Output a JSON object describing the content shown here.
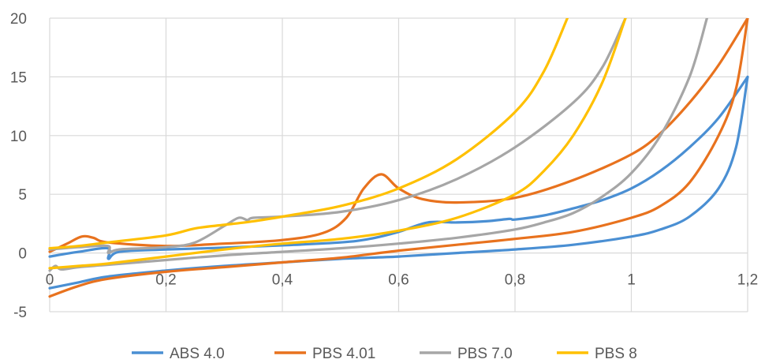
{
  "chart_data": {
    "type": "line",
    "title": "",
    "xlabel": "",
    "ylabel": "",
    "xlim": [
      0,
      1.2
    ],
    "ylim": [
      -5,
      20
    ],
    "grid": true,
    "legend_position": "bottom",
    "x_ticks": [
      {
        "value": 0,
        "label": "0"
      },
      {
        "value": 0.2,
        "label": "0,2"
      },
      {
        "value": 0.4,
        "label": "0,4"
      },
      {
        "value": 0.6,
        "label": "0,6"
      },
      {
        "value": 0.8,
        "label": "0,8"
      },
      {
        "value": 1,
        "label": "1"
      },
      {
        "value": 1.2,
        "label": "1,2"
      }
    ],
    "y_ticks": [
      {
        "value": -5,
        "label": "-5"
      },
      {
        "value": 0,
        "label": "0"
      },
      {
        "value": 5,
        "label": "5"
      },
      {
        "value": 10,
        "label": "10"
      },
      {
        "value": 15,
        "label": "15"
      },
      {
        "value": 20,
        "label": "20"
      }
    ],
    "series": [
      {
        "name": "ABS 4.0",
        "color": "#4A8FD3",
        "curves": [
          [
            [
              0,
              -3.0
            ],
            [
              0.05,
              -2.5
            ],
            [
              0.1,
              -2.0
            ],
            [
              0.2,
              -1.5
            ],
            [
              0.3,
              -1.1
            ],
            [
              0.4,
              -0.8
            ],
            [
              0.5,
              -0.5
            ],
            [
              0.6,
              -0.3
            ],
            [
              0.7,
              0.0
            ],
            [
              0.8,
              0.3
            ],
            [
              0.9,
              0.7
            ],
            [
              1.0,
              1.4
            ],
            [
              1.05,
              2.0
            ],
            [
              1.1,
              3.1
            ],
            [
              1.15,
              5.5
            ],
            [
              1.18,
              9.0
            ],
            [
              1.2,
              15.0
            ]
          ],
          [
            [
              0,
              -0.3
            ],
            [
              0.05,
              0.1
            ],
            [
              0.1,
              0.4
            ],
            [
              0.101,
              -0.5
            ],
            [
              0.12,
              0.1
            ],
            [
              0.2,
              0.3
            ],
            [
              0.3,
              0.45
            ],
            [
              0.4,
              0.65
            ],
            [
              0.5,
              0.9
            ],
            [
              0.55,
              1.2
            ],
            [
              0.6,
              1.8
            ],
            [
              0.65,
              2.6
            ],
            [
              0.7,
              2.6
            ],
            [
              0.75,
              2.7
            ],
            [
              0.79,
              2.9
            ],
            [
              0.8,
              2.85
            ],
            [
              0.85,
              3.2
            ],
            [
              0.9,
              3.8
            ],
            [
              0.95,
              4.5
            ],
            [
              1.0,
              5.5
            ],
            [
              1.05,
              7.0
            ],
            [
              1.1,
              9.0
            ],
            [
              1.15,
              11.5
            ],
            [
              1.2,
              15.0
            ]
          ]
        ]
      },
      {
        "name": "PBS 4.01",
        "color": "#E8721E",
        "curves": [
          [
            [
              0,
              -3.7
            ],
            [
              0.05,
              -2.8
            ],
            [
              0.1,
              -2.2
            ],
            [
              0.2,
              -1.6
            ],
            [
              0.3,
              -1.2
            ],
            [
              0.4,
              -0.8
            ],
            [
              0.5,
              -0.4
            ],
            [
              0.6,
              0.2
            ],
            [
              0.7,
              0.7
            ],
            [
              0.8,
              1.2
            ],
            [
              0.9,
              1.8
            ],
            [
              1.0,
              3.0
            ],
            [
              1.05,
              4.0
            ],
            [
              1.1,
              6.0
            ],
            [
              1.15,
              10.0
            ],
            [
              1.18,
              14.0
            ],
            [
              1.2,
              20.0
            ]
          ],
          [
            [
              0,
              0.1
            ],
            [
              0.03,
              0.8
            ],
            [
              0.055,
              1.4
            ],
            [
              0.075,
              1.3
            ],
            [
              0.1,
              0.9
            ],
            [
              0.2,
              0.6
            ],
            [
              0.3,
              0.8
            ],
            [
              0.4,
              1.1
            ],
            [
              0.47,
              1.7
            ],
            [
              0.51,
              3.0
            ],
            [
              0.54,
              5.5
            ],
            [
              0.57,
              6.7
            ],
            [
              0.6,
              5.5
            ],
            [
              0.64,
              4.6
            ],
            [
              0.7,
              4.3
            ],
            [
              0.8,
              4.7
            ],
            [
              0.9,
              6.2
            ],
            [
              1.0,
              8.4
            ],
            [
              1.05,
              10.2
            ],
            [
              1.1,
              12.8
            ],
            [
              1.15,
              16.0
            ],
            [
              1.2,
              20.0
            ]
          ]
        ]
      },
      {
        "name": "PBS 7.0",
        "color": "#A6A6A6",
        "curves": [
          [
            [
              0,
              -1.5
            ],
            [
              0.01,
              -1.1
            ],
            [
              0.02,
              -1.4
            ],
            [
              0.05,
              -1.2
            ],
            [
              0.1,
              -1.0
            ],
            [
              0.2,
              -0.6
            ],
            [
              0.3,
              -0.2
            ],
            [
              0.4,
              0.1
            ],
            [
              0.5,
              0.4
            ],
            [
              0.6,
              0.8
            ],
            [
              0.7,
              1.3
            ],
            [
              0.8,
              2.0
            ],
            [
              0.85,
              2.6
            ],
            [
              0.9,
              3.4
            ],
            [
              0.95,
              4.8
            ],
            [
              1.0,
              6.8
            ],
            [
              1.05,
              10.0
            ],
            [
              1.1,
              15.0
            ],
            [
              1.13,
              20.0
            ]
          ],
          [
            [
              0,
              0.3
            ],
            [
              0.05,
              0.5
            ],
            [
              0.1,
              0.6
            ],
            [
              0.101,
              0.0
            ],
            [
              0.12,
              0.3
            ],
            [
              0.2,
              0.5
            ],
            [
              0.25,
              0.9
            ],
            [
              0.3,
              2.3
            ],
            [
              0.325,
              3.0
            ],
            [
              0.34,
              2.8
            ],
            [
              0.35,
              3.0
            ],
            [
              0.4,
              3.1
            ],
            [
              0.5,
              3.5
            ],
            [
              0.6,
              4.5
            ],
            [
              0.7,
              6.3
            ],
            [
              0.8,
              9.0
            ],
            [
              0.9,
              12.8
            ],
            [
              0.95,
              15.8
            ],
            [
              0.99,
              20.0
            ]
          ]
        ]
      },
      {
        "name": "PBS 8",
        "color": "#FFC000",
        "curves": [
          [
            [
              0,
              -1.3
            ],
            [
              0.05,
              -1.1
            ],
            [
              0.1,
              -0.9
            ],
            [
              0.2,
              -0.3
            ],
            [
              0.3,
              0.3
            ],
            [
              0.4,
              0.8
            ],
            [
              0.5,
              1.2
            ],
            [
              0.6,
              1.9
            ],
            [
              0.7,
              3.0
            ],
            [
              0.8,
              5.0
            ],
            [
              0.85,
              7.0
            ],
            [
              0.9,
              10.0
            ],
            [
              0.95,
              14.5
            ],
            [
              0.99,
              20.0
            ]
          ],
          [
            [
              0,
              0.4
            ],
            [
              0.05,
              0.6
            ],
            [
              0.1,
              0.9
            ],
            [
              0.2,
              1.5
            ],
            [
              0.25,
              2.1
            ],
            [
              0.3,
              2.4
            ],
            [
              0.35,
              2.7
            ],
            [
              0.4,
              3.1
            ],
            [
              0.5,
              4.0
            ],
            [
              0.6,
              5.5
            ],
            [
              0.7,
              8.0
            ],
            [
              0.8,
              12.0
            ],
            [
              0.85,
              15.5
            ],
            [
              0.89,
              20.0
            ]
          ]
        ]
      }
    ]
  }
}
